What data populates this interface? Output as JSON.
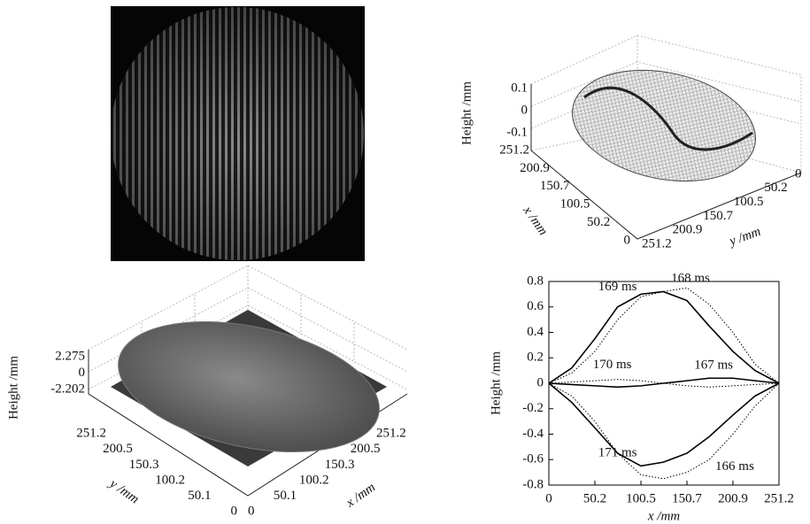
{
  "chart_data": [
    {
      "type": "surface3d",
      "zlabel": "Height /mm",
      "xlabel": "x /mm",
      "ylabel": "y /mm",
      "zlim": [
        -0.1,
        0.1
      ],
      "zticks": [
        0.1,
        0,
        -0.1
      ],
      "xlim": [
        0,
        251.2
      ],
      "xticks": [
        0,
        50.2,
        100.5,
        150.7,
        200.9,
        251.2
      ],
      "ylim": [
        0,
        251.2
      ],
      "yticks": [
        0,
        50.2,
        100.5,
        150.7,
        200.9,
        251.2
      ]
    },
    {
      "type": "image3d",
      "zlabel": "Height /mm",
      "xlabel": "x /mm",
      "ylabel": "y /mm",
      "zlim": [
        -2.202,
        2.275
      ],
      "zticks": [
        2.275,
        0,
        -2.202
      ],
      "xlim": [
        0,
        251.2
      ],
      "xticks": [
        0,
        50.1,
        100.2,
        150.3,
        200.5,
        251.2
      ],
      "ylim": [
        0,
        251.2
      ],
      "yticks": [
        0,
        50.1,
        100.2,
        150.3,
        200.5,
        251.2
      ]
    },
    {
      "type": "line",
      "xlabel": "x /mm",
      "ylabel": "Height /mm",
      "x": [
        0,
        25,
        50.2,
        75,
        100.5,
        125,
        150.7,
        175,
        200.9,
        225,
        251.2
      ],
      "xlim": [
        0,
        251.2
      ],
      "xticks": [
        0,
        50.2,
        100.5,
        150.7,
        200.9,
        251.2
      ],
      "ylim": [
        -0.8,
        0.8
      ],
      "yticks": [
        0.8,
        0.6,
        0.4,
        0.2,
        0,
        -0.2,
        -0.4,
        -0.6,
        -0.8
      ],
      "series": [
        {
          "name": "169 ms",
          "color": "#000000",
          "style": "solid",
          "values": [
            0,
            0.12,
            0.35,
            0.6,
            0.7,
            0.72,
            0.65,
            0.45,
            0.25,
            0.1,
            0
          ]
        },
        {
          "name": "168 ms",
          "color": "#000000",
          "style": "dotted",
          "values": [
            0,
            0.08,
            0.25,
            0.5,
            0.68,
            0.72,
            0.75,
            0.62,
            0.4,
            0.15,
            0
          ]
        },
        {
          "name": "170 ms",
          "color": "#000000",
          "style": "dotted",
          "values": [
            0,
            0.01,
            0.02,
            0.03,
            0.02,
            0,
            -0.02,
            -0.03,
            -0.02,
            -0.01,
            0
          ]
        },
        {
          "name": "167 ms",
          "color": "#000000",
          "style": "solid",
          "values": [
            0,
            -0.01,
            -0.02,
            -0.03,
            -0.02,
            0,
            0.02,
            0.04,
            0.04,
            0.02,
            0
          ]
        },
        {
          "name": "171 ms",
          "color": "#000000",
          "style": "solid",
          "values": [
            0,
            -0.15,
            -0.35,
            -0.55,
            -0.65,
            -0.62,
            -0.55,
            -0.42,
            -0.25,
            -0.1,
            0
          ]
        },
        {
          "name": "166 ms",
          "color": "#000000",
          "style": "dotted",
          "values": [
            0,
            -0.1,
            -0.3,
            -0.55,
            -0.72,
            -0.75,
            -0.7,
            -0.6,
            -0.4,
            -0.18,
            0
          ]
        }
      ]
    }
  ]
}
